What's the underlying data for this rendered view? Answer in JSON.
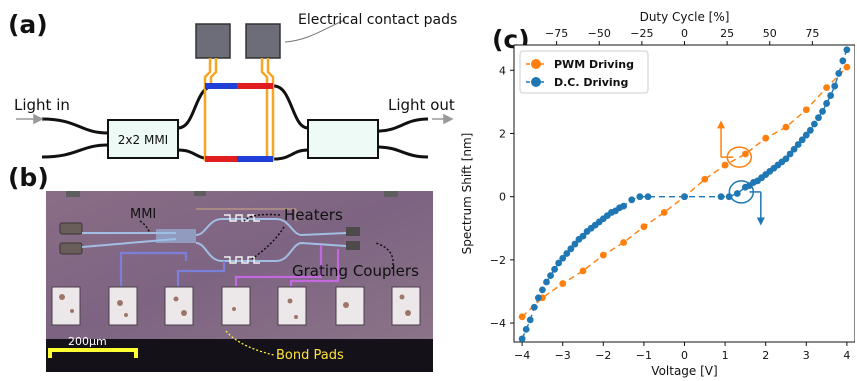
{
  "panels": {
    "a": "(a)",
    "b": "(b)",
    "c": "(c)"
  },
  "diagram": {
    "contact_pads_label": "Electrical contact pads",
    "light_in": "Light in",
    "light_out": "Light out",
    "mmi_label": "2x2 MMI"
  },
  "micrograph": {
    "mmi": "MMI",
    "heaters": "Heaters",
    "grating_couplers": "Grating Couplers",
    "bond_pads": "Bond Pads",
    "scale_bar": "200μm"
  },
  "chart_data": {
    "type": "scatter",
    "xlabel": "Voltage [V]",
    "ylabel": "Spectrum Shift [nm]",
    "x2label": "Duty Cycle [%]",
    "xlim": [
      -4.2,
      4.2
    ],
    "ylim": [
      -4.6,
      4.8
    ],
    "x2lim": [
      -100,
      100
    ],
    "xticks": [
      -4,
      -3,
      -2,
      -1,
      0,
      1,
      2,
      3,
      4
    ],
    "yticks": [
      -4,
      -2,
      0,
      2,
      4
    ],
    "x2ticks": [
      -75,
      -50,
      -25,
      0,
      25,
      50,
      75
    ],
    "legend_position": "top-left",
    "series": [
      {
        "name": "PWM Driving",
        "color": "#ff7f0e",
        "x": [
          -4.0,
          -3.5,
          -3.0,
          -2.5,
          -2.0,
          -1.5,
          -1.0,
          -0.5,
          0.0,
          0.5,
          1.0,
          1.5,
          2.0,
          2.5,
          3.0,
          3.5,
          4.0
        ],
        "y": [
          -3.8,
          -3.2,
          -2.75,
          -2.35,
          -1.85,
          -1.45,
          -0.95,
          -0.5,
          0.0,
          0.55,
          1.0,
          1.35,
          1.85,
          2.2,
          2.75,
          3.45,
          4.1
        ]
      },
      {
        "name": "D.C. Driving",
        "color": "#1f77b4",
        "x": [
          -4.0,
          -3.9,
          -3.8,
          -3.7,
          -3.6,
          -3.5,
          -3.4,
          -3.3,
          -3.2,
          -3.1,
          -3.0,
          -2.9,
          -2.8,
          -2.7,
          -2.6,
          -2.5,
          -2.4,
          -2.3,
          -2.2,
          -2.1,
          -2.0,
          -1.9,
          -1.8,
          -1.7,
          -1.6,
          -1.5,
          -1.3,
          -1.1,
          -0.9,
          0.0,
          0.9,
          1.1,
          1.3,
          1.5,
          1.6,
          1.7,
          1.8,
          1.9,
          2.0,
          2.1,
          2.2,
          2.3,
          2.4,
          2.5,
          2.6,
          2.7,
          2.8,
          2.9,
          3.0,
          3.1,
          3.2,
          3.3,
          3.4,
          3.5,
          3.6,
          3.7,
          3.8,
          3.9,
          4.0
        ],
        "y": [
          -4.5,
          -4.2,
          -3.9,
          -3.5,
          -3.2,
          -2.95,
          -2.7,
          -2.5,
          -2.3,
          -2.1,
          -1.95,
          -1.8,
          -1.65,
          -1.5,
          -1.35,
          -1.25,
          -1.1,
          -1.0,
          -0.9,
          -0.8,
          -0.7,
          -0.6,
          -0.5,
          -0.45,
          -0.35,
          -0.3,
          -0.1,
          0.0,
          0.0,
          0.0,
          0.0,
          0.0,
          0.1,
          0.3,
          0.35,
          0.45,
          0.5,
          0.6,
          0.7,
          0.8,
          0.9,
          1.0,
          1.1,
          1.2,
          1.35,
          1.5,
          1.65,
          1.8,
          1.95,
          2.1,
          2.3,
          2.5,
          2.7,
          2.95,
          3.2,
          3.5,
          3.9,
          4.3,
          4.65
        ]
      }
    ]
  }
}
